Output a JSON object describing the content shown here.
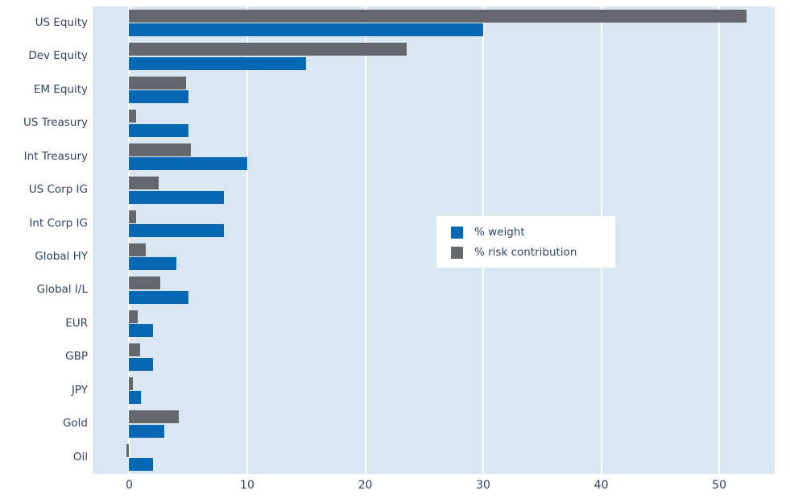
{
  "figure": {
    "background": "#ffffff",
    "plot_background": "#dae7f3",
    "gridline_color": "#ffffff",
    "text_color": "#2e4468"
  },
  "legend": {
    "items": [
      {
        "label": "% weight",
        "color": "#0668b2",
        "swatch": "blue-square"
      },
      {
        "label": "% risk contribution",
        "color": "#64676c",
        "swatch": "gray-square"
      }
    ]
  },
  "chart_data": {
    "type": "bar",
    "orientation": "horizontal",
    "title": "",
    "xlabel": "",
    "ylabel": "",
    "grid": true,
    "legend_position": "center-right",
    "categories": [
      "US Equity",
      "Dev Equity",
      "EM Equity",
      "US Treasury",
      "Int Treasury",
      "US Corp IG",
      "Int Corp IG",
      "Global HY",
      "Global I/L",
      "EUR",
      "GBP",
      "JPY",
      "Gold",
      "Oil"
    ],
    "series": [
      {
        "name": "% weight",
        "color": "#0668b2",
        "values": [
          30,
          15,
          5,
          5,
          10,
          8,
          8,
          4,
          5,
          2,
          2,
          1,
          3,
          2
        ]
      },
      {
        "name": "% risk contribution",
        "color": "#64676c",
        "values": [
          52.3,
          23.5,
          4.8,
          0.6,
          5.2,
          2.5,
          0.6,
          1.4,
          2.6,
          0.7,
          0.9,
          0.3,
          4.2,
          -0.2
        ]
      }
    ],
    "xticks": [
      0,
      10,
      20,
      30,
      40,
      50
    ],
    "xlim": [
      -3.1,
      54.7
    ]
  }
}
